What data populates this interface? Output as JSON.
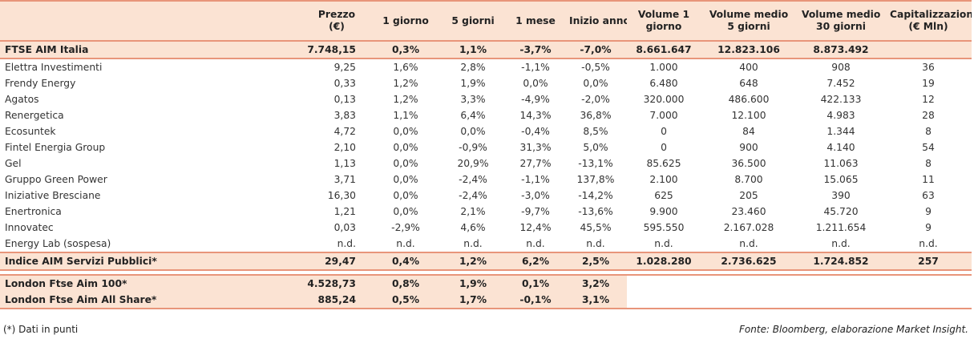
{
  "header": {
    "cols": [
      "",
      "Prezzo\n(€)",
      "1 giorno",
      "5 giorni",
      "1 mese",
      "Inizio anno",
      "Volume 1\ngiorno",
      "Volume medio\n5 giorni",
      "Volume medio\n30 giorni",
      "Capitalizzazione\n(€ Mln)"
    ]
  },
  "index_row": {
    "name": "FTSE AIM Italia",
    "cells": [
      "7.748,15",
      "0,3%",
      "1,1%",
      "-3,7%",
      "-7,0%",
      "8.661.647",
      "12.823.106",
      "8.873.492",
      ""
    ]
  },
  "rows": [
    {
      "name": "Elettra Investimenti",
      "cells": [
        "9,25",
        "1,6%",
        "2,8%",
        "-1,1%",
        "-0,5%",
        "1.000",
        "400",
        "908",
        "36"
      ]
    },
    {
      "name": "Frendy Energy",
      "cells": [
        "0,33",
        "1,2%",
        "1,9%",
        "0,0%",
        "0,0%",
        "6.480",
        "648",
        "7.452",
        "19"
      ]
    },
    {
      "name": "Agatos",
      "cells": [
        "0,13",
        "1,2%",
        "3,3%",
        "-4,9%",
        "-2,0%",
        "320.000",
        "486.600",
        "422.133",
        "12"
      ]
    },
    {
      "name": "Renergetica",
      "cells": [
        "3,83",
        "1,1%",
        "6,4%",
        "14,3%",
        "36,8%",
        "7.000",
        "12.100",
        "4.983",
        "28"
      ]
    },
    {
      "name": "Ecosuntek",
      "cells": [
        "4,72",
        "0,0%",
        "0,0%",
        "-0,4%",
        "8,5%",
        "0",
        "84",
        "1.344",
        "8"
      ]
    },
    {
      "name": "Fintel Energia Group",
      "cells": [
        "2,10",
        "0,0%",
        "-0,9%",
        "31,3%",
        "5,0%",
        "0",
        "900",
        "4.140",
        "54"
      ]
    },
    {
      "name": "Gel",
      "cells": [
        "1,13",
        "0,0%",
        "20,9%",
        "27,7%",
        "-13,1%",
        "85.625",
        "36.500",
        "11.063",
        "8"
      ]
    },
    {
      "name": "Gruppo Green Power",
      "cells": [
        "3,71",
        "0,0%",
        "-2,4%",
        "-1,1%",
        "137,8%",
        "2.100",
        "8.700",
        "15.065",
        "11"
      ]
    },
    {
      "name": "Iniziative Bresciane",
      "cells": [
        "16,30",
        "0,0%",
        "-2,4%",
        "-3,0%",
        "-14,2%",
        "625",
        "205",
        "390",
        "63"
      ]
    },
    {
      "name": "Enertronica",
      "cells": [
        "1,21",
        "0,0%",
        "2,1%",
        "-9,7%",
        "-13,6%",
        "9.900",
        "23.460",
        "45.720",
        "9"
      ]
    },
    {
      "name": "Innovatec",
      "cells": [
        "0,03",
        "-2,9%",
        "4,6%",
        "12,4%",
        "45,5%",
        "595.550",
        "2.167.028",
        "1.211.654",
        "9"
      ]
    },
    {
      "name": "Energy Lab (sospesa)",
      "cells": [
        "n.d.",
        "n.d.",
        "n.d.",
        "n.d.",
        "n.d.",
        "n.d.",
        "n.d.",
        "n.d.",
        "n.d."
      ]
    }
  ],
  "summary_row": {
    "name": "Indice AIM Servizi Pubblici*",
    "cells": [
      "29,47",
      "0,4%",
      "1,2%",
      "6,2%",
      "2,5%",
      "1.028.280",
      "2.736.625",
      "1.724.852",
      "257"
    ]
  },
  "london_rows": [
    {
      "name": "London Ftse Aim 100*",
      "cells": [
        "4.528,73",
        "0,8%",
        "1,9%",
        "0,1%",
        "3,2%"
      ]
    },
    {
      "name": "London Ftse Aim All Share*",
      "cells": [
        "885,24",
        "0,5%",
        "1,7%",
        "-0,1%",
        "3,1%"
      ]
    }
  ],
  "footer": {
    "note": "(*) Dati in punti",
    "source": "Fonte: Bloomberg, elaborazione Market Insight."
  }
}
